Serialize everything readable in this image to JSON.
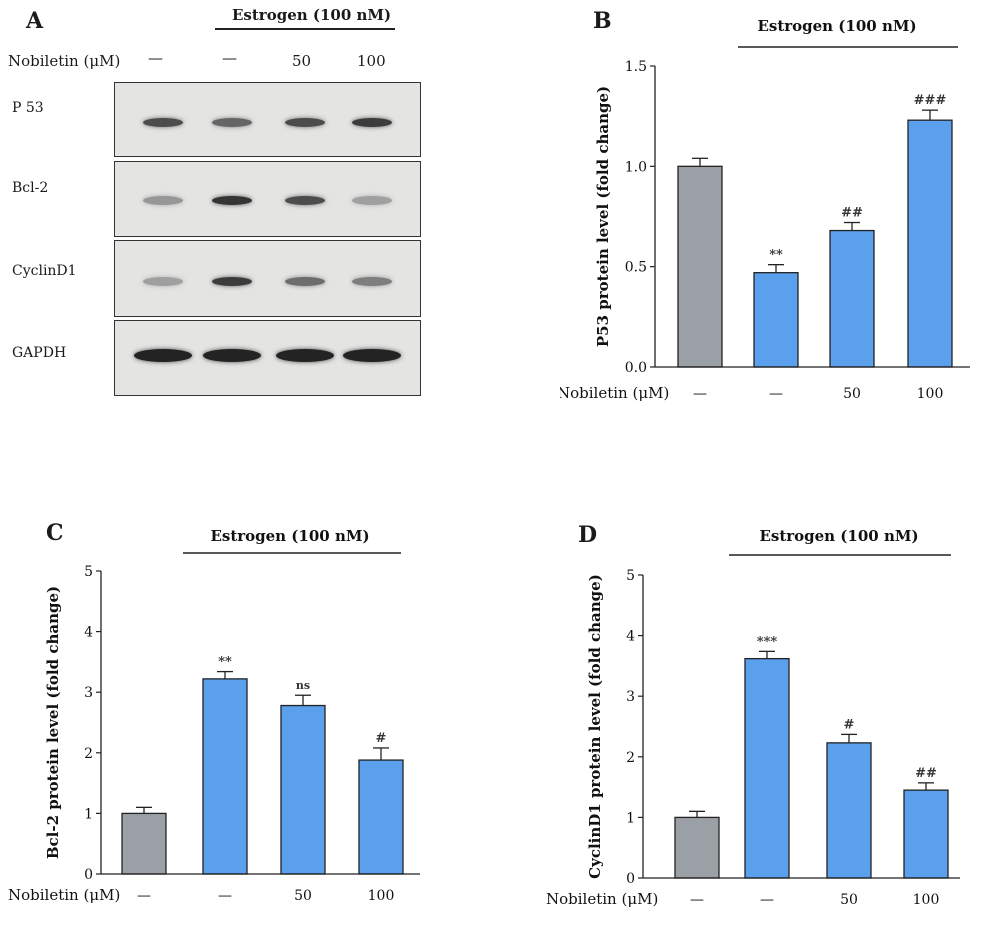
{
  "panelA": {
    "letter": "A",
    "treatment": "Estrogen (100 nM)",
    "nobiletin_label": "Nobiletin (μM)",
    "doses": [
      "—",
      "—",
      "50",
      "100"
    ],
    "blots": [
      {
        "label": "P 53",
        "intensities": [
          0.75,
          0.6,
          0.75,
          0.85
        ]
      },
      {
        "label": "Bcl-2",
        "intensities": [
          0.3,
          0.9,
          0.75,
          0.25
        ]
      },
      {
        "label": "CyclinD1",
        "intensities": [
          0.25,
          0.85,
          0.55,
          0.45
        ]
      },
      {
        "label": "GAPDH",
        "intensities": [
          1.0,
          1.0,
          1.0,
          1.0
        ]
      }
    ]
  },
  "chart_data": [
    {
      "panel": "B",
      "type": "bar",
      "title": "Estrogen (100 nM)",
      "ylabel": "P53 protein level (fold change)",
      "xlabel": "Nobiletin (μM)",
      "categories": [
        "—",
        "—",
        "50",
        "100"
      ],
      "values": [
        1.0,
        0.47,
        0.68,
        1.23
      ],
      "errors": [
        0.04,
        0.04,
        0.04,
        0.05
      ],
      "annotations": [
        "",
        "**",
        "##",
        "###"
      ],
      "colors": [
        "#9aa0a6",
        "#5aa0ec",
        "#5aa0ec",
        "#5aa0ec"
      ],
      "ylim": [
        0,
        1.5
      ],
      "yticks": [
        "0.0",
        "0.5",
        "1.0",
        "1.5"
      ]
    },
    {
      "panel": "C",
      "type": "bar",
      "title": "Estrogen (100 nM)",
      "ylabel": "Bcl-2 protein level (fold change)",
      "xlabel": "Nobiletin (μM)",
      "categories": [
        "—",
        "—",
        "50",
        "100"
      ],
      "values": [
        1.0,
        3.22,
        2.78,
        1.88
      ],
      "errors": [
        0.1,
        0.12,
        0.17,
        0.2
      ],
      "annotations": [
        "",
        "**",
        "ns",
        "#"
      ],
      "colors": [
        "#9aa0a6",
        "#5aa0ec",
        "#5aa0ec",
        "#5aa0ec"
      ],
      "ylim": [
        0,
        5
      ],
      "yticks": [
        "0",
        "1",
        "2",
        "3",
        "4",
        "5"
      ]
    },
    {
      "panel": "D",
      "type": "bar",
      "title": "Estrogen (100 nM)",
      "ylabel": "CyclinD1 protein level (fold change)",
      "xlabel": "Nobiletin (μM)",
      "categories": [
        "—",
        "—",
        "50",
        "100"
      ],
      "values": [
        1.0,
        3.62,
        2.23,
        1.45
      ],
      "errors": [
        0.1,
        0.12,
        0.14,
        0.12
      ],
      "annotations": [
        "",
        "***",
        "#",
        "##"
      ],
      "colors": [
        "#9aa0a6",
        "#5aa0ec",
        "#5aa0ec",
        "#5aa0ec"
      ],
      "ylim": [
        0,
        5
      ],
      "yticks": [
        "0",
        "1",
        "2",
        "3",
        "4",
        "5"
      ]
    }
  ]
}
